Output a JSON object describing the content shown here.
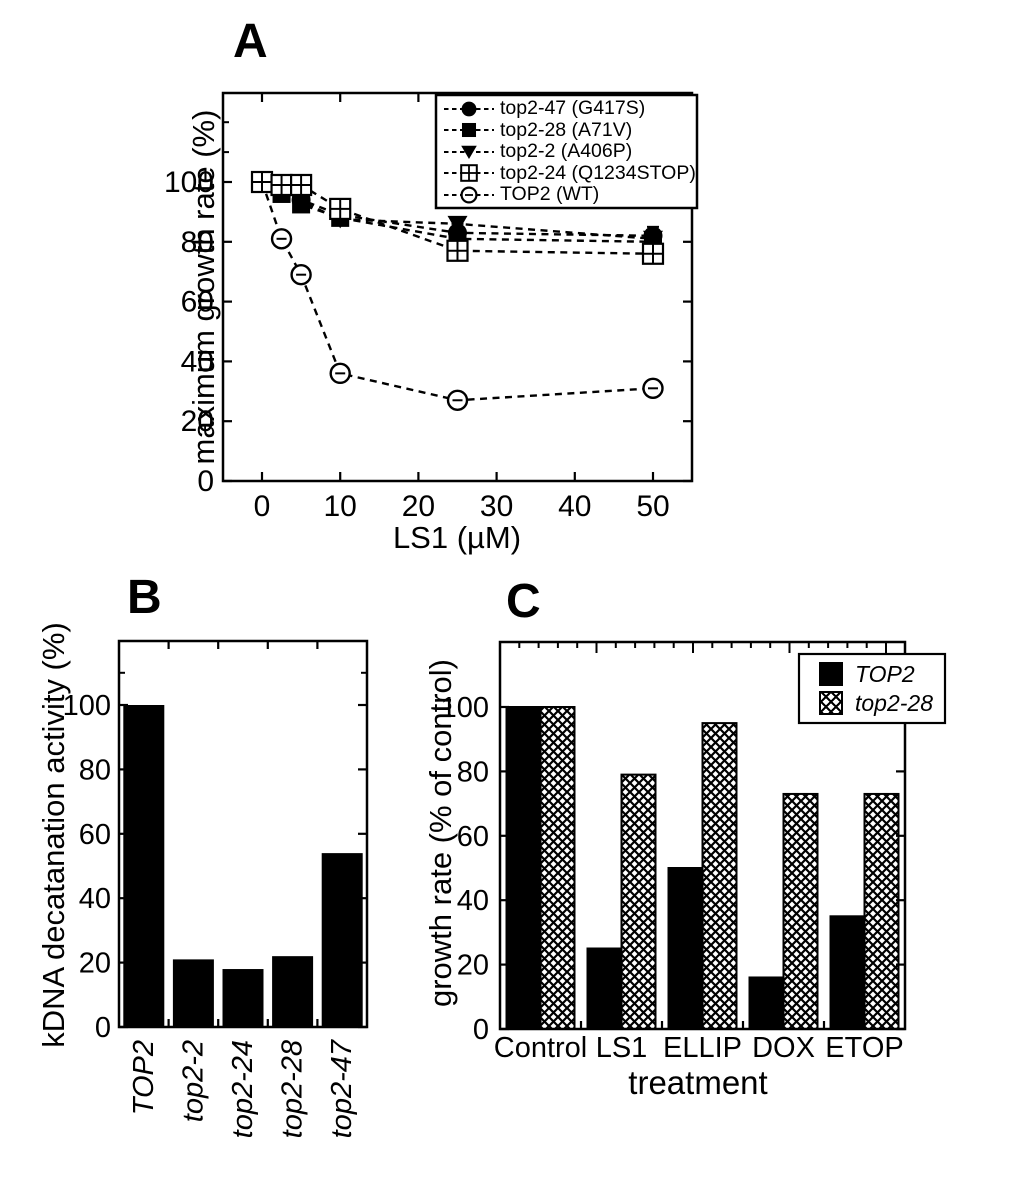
{
  "figure": {
    "panel_letters": [
      "A",
      "B",
      "C"
    ],
    "colors": {
      "ink": "#000000",
      "background": "#ffffff"
    }
  },
  "chart_data": [
    {
      "id": "A",
      "type": "line",
      "xlabel": "LS1 (µM)",
      "ylabel": "maximum growth rate (%)",
      "x": [
        0,
        2.5,
        5,
        10,
        25,
        50
      ],
      "xlim": [
        -5,
        55
      ],
      "ylim": [
        0,
        130
      ],
      "xticks": [
        0,
        10,
        20,
        30,
        40,
        50
      ],
      "yticks": [
        0,
        20,
        40,
        60,
        80,
        100
      ],
      "yminor": [
        110,
        120
      ],
      "line_style": "dashed",
      "legend_position": "top-right",
      "series": [
        {
          "label": "top2-47 (G417S)",
          "marker": "filled-circle",
          "values": [
            100,
            97,
            94,
            89,
            83,
            82
          ],
          "err": [
            0,
            0,
            0,
            2,
            3,
            3
          ]
        },
        {
          "label": "top2-28 (A71V)",
          "marker": "filled-square",
          "values": [
            100,
            96,
            92.5,
            88,
            81,
            80
          ],
          "err": [
            0,
            2,
            2,
            2,
            2,
            3
          ]
        },
        {
          "label": "top2-2 (A406P)",
          "marker": "filled-triangle-down",
          "values": [
            100,
            97.5,
            93.5,
            87.5,
            86,
            81
          ],
          "err": [
            0,
            0,
            2,
            2,
            2,
            2
          ]
        },
        {
          "label": "top2-24 (Q1234STOP)",
          "marker": "crossed-square",
          "values": [
            100,
            99,
            99,
            91,
            77,
            76
          ],
          "err": [
            2,
            2,
            2,
            2,
            3,
            3
          ]
        },
        {
          "label": "TOP2 (WT)",
          "marker": "open-circle",
          "values": [
            100,
            81,
            69,
            36,
            27,
            31
          ],
          "err": [
            0,
            2,
            2,
            2,
            2,
            2
          ]
        }
      ]
    },
    {
      "id": "B",
      "type": "bar",
      "ylabel": "kDNA decatanation activity (%)",
      "categories": [
        "TOP2",
        "top2-2",
        "top2-24",
        "top2-28",
        "top2-47"
      ],
      "values": [
        100,
        21,
        18,
        22,
        54
      ],
      "ylim": [
        0,
        120
      ],
      "yticks": [
        0,
        20,
        40,
        60,
        80,
        100
      ],
      "bar_color": "#000000"
    },
    {
      "id": "C",
      "type": "bar",
      "xlabel": "treatment",
      "ylabel": "growth rate (% of control)",
      "categories": [
        "Control",
        "LS1",
        "ELLIP",
        "DOX",
        "ETOP"
      ],
      "ylim": [
        0,
        120
      ],
      "yticks": [
        0,
        20,
        40,
        60,
        80,
        100
      ],
      "legend_position": "top-right",
      "series": [
        {
          "name": "TOP2",
          "fill": "solid-black",
          "values": [
            100,
            25,
            50,
            16,
            35
          ]
        },
        {
          "name": "top2-28",
          "fill": "crosshatch",
          "values": [
            100,
            79,
            95,
            73,
            73
          ]
        }
      ]
    }
  ]
}
